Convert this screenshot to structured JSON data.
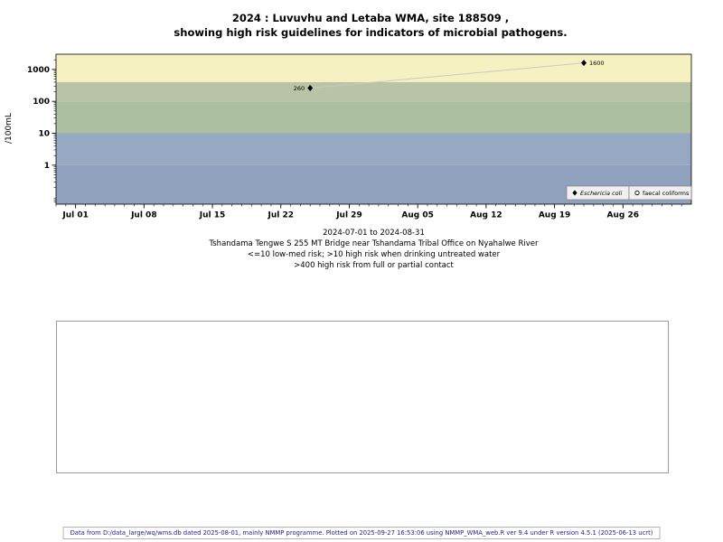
{
  "title": {
    "line1": "2024 : Luvuvhu and Letaba WMA, site 188509 ,",
    "line2": "showing high risk guidelines for indicators of microbial pathogens."
  },
  "chart_data": {
    "type": "scatter",
    "title": "2024 : Luvuvhu and Letaba WMA, site 188509 , showing high risk guidelines for indicators of microbial pathogens.",
    "ylabel": "/100mL",
    "y_scale": "log",
    "y_domain": [
      0.06,
      3000
    ],
    "y_ticks": [
      1,
      10,
      100,
      1000
    ],
    "x_domain_days": [
      -2,
      63
    ],
    "x_ticks": [
      {
        "day": 0,
        "label": "Jul 01"
      },
      {
        "day": 7,
        "label": "Jul 08"
      },
      {
        "day": 14,
        "label": "Jul 15"
      },
      {
        "day": 21,
        "label": "Jul 22"
      },
      {
        "day": 28,
        "label": "Jul 29"
      },
      {
        "day": 35,
        "label": "Aug 05"
      },
      {
        "day": 42,
        "label": "Aug 12"
      },
      {
        "day": 49,
        "label": "Aug 19"
      },
      {
        "day": 56,
        "label": "Aug 26"
      }
    ],
    "bands": [
      {
        "from": 400,
        "to": 3000,
        "color": "#f6f1c0",
        "meaning": ">400 high risk from full or partial contact"
      },
      {
        "from": 100,
        "to": 400,
        "color": "#b8c4a5",
        "meaning": "high risk when drinking untreated water"
      },
      {
        "from": 10,
        "to": 100,
        "color": "#adbfa1",
        "meaning": "high risk when drinking untreated water"
      },
      {
        "from": 1,
        "to": 10,
        "color": "#97a8c2",
        "meaning": "low-med risk"
      },
      {
        "from": 0.06,
        "to": 1,
        "color": "#8fa1bd",
        "meaning": "low-med risk"
      }
    ],
    "series": [
      {
        "name": "Eschericia coli",
        "marker": "diamond",
        "line_color": "#c9c9c9",
        "point_color": "#000000",
        "points": [
          {
            "day": 24,
            "value": 260,
            "label": "260",
            "label_side": "left"
          },
          {
            "day": 52,
            "value": 1600,
            "label": "1600",
            "label_side": "right"
          }
        ]
      },
      {
        "name": "faecal coliforms",
        "marker": "circle",
        "points": []
      }
    ],
    "legend": {
      "position": "bottom-right",
      "items": [
        {
          "symbol": "diamond",
          "label": "Eschericia coli",
          "italic": true
        },
        {
          "symbol": "circle",
          "label": "faecal coliforms",
          "italic": false
        }
      ]
    }
  },
  "caption": {
    "lines": [
      "2024-07-01 to 2024-08-31",
      "Tshandama Tengwe S 255 MT Bridge near Tshandama Tribal Office on Nyahalwe River",
      "<=10 low-med risk; >10 high risk when drinking untreated water",
      ">400 high risk from full or partial contact"
    ]
  },
  "footer": {
    "text": "Data from D:/data_large/wq/wms.db dated 2025-08-01, mainly NMMP programme. Plotted on 2025-09-27 16:53:06 using NMMP_WMA_web.R ver 9.4 under R version 4.5.1 (2025-06-13 ucrt)"
  }
}
